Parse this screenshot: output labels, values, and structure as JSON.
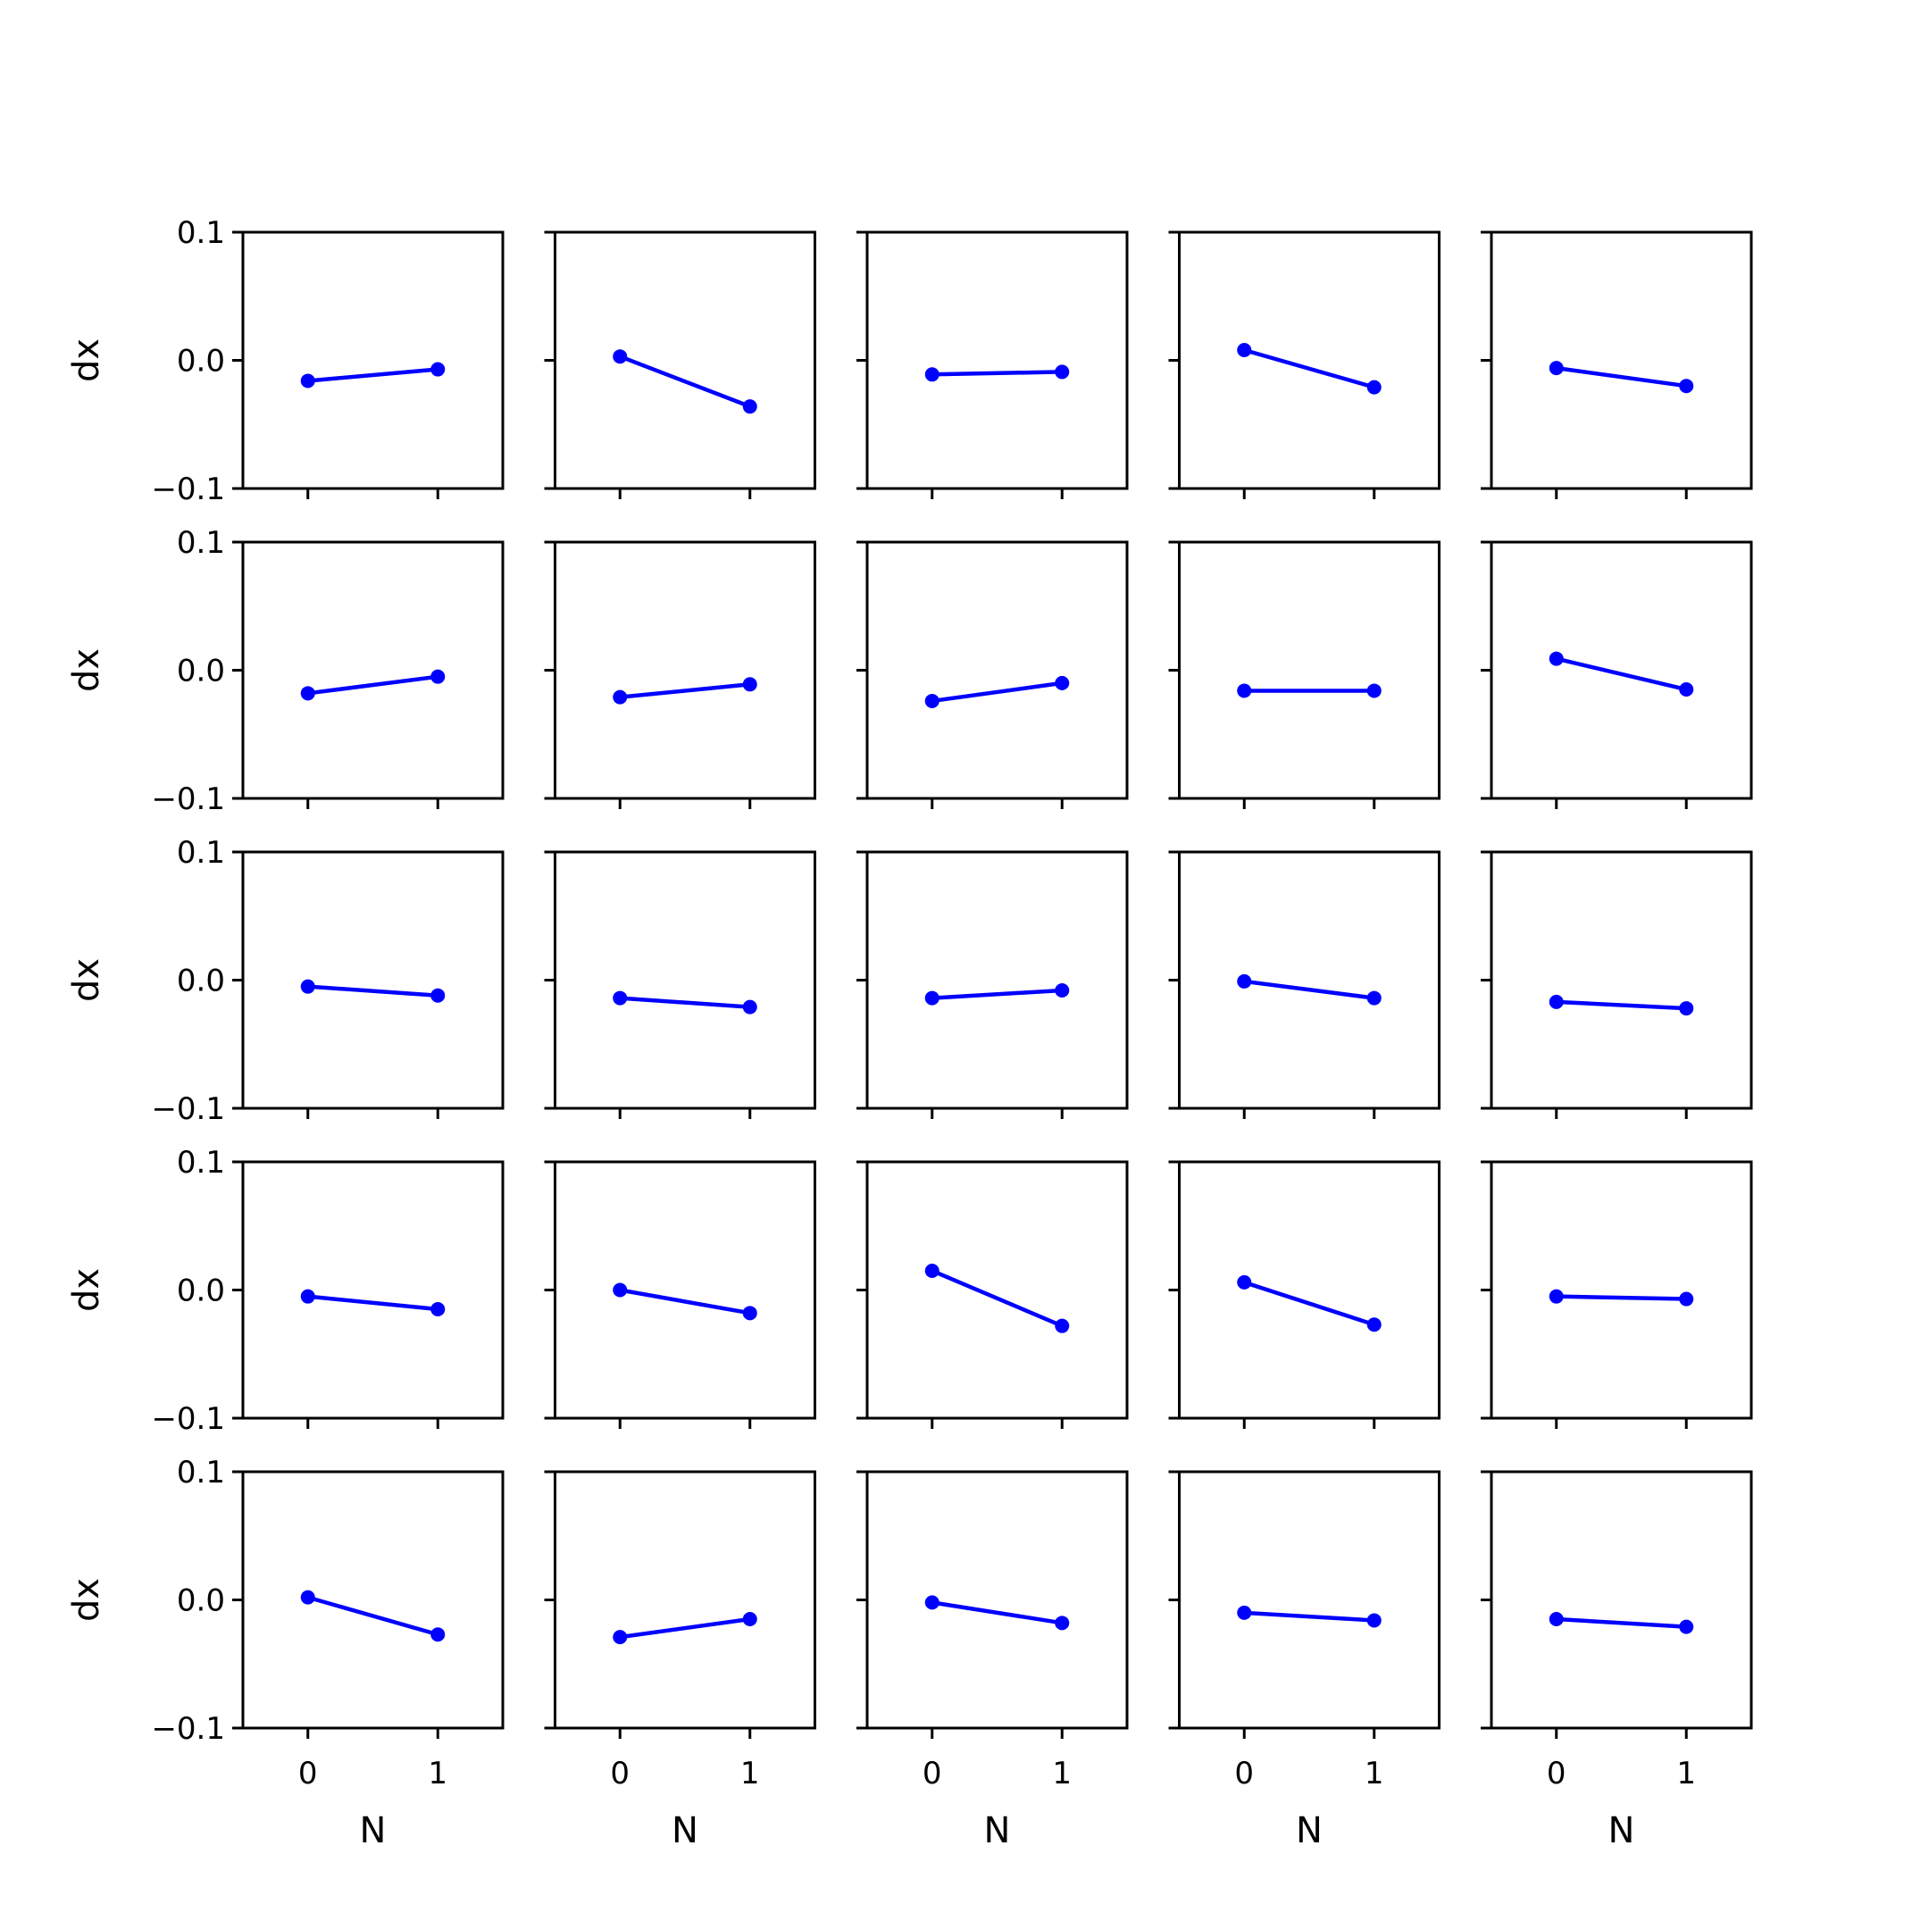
{
  "chart_data": {
    "type": "line",
    "layout": "5x5 grid of subplots, shared x and y axes",
    "x": [
      0,
      1
    ],
    "xticks": [
      0,
      1
    ],
    "xtick_labels": [
      "0",
      "1"
    ],
    "xlim": [
      -0.5,
      1.5
    ],
    "yticks": [
      -0.1,
      0.0,
      0.1
    ],
    "ytick_labels": [
      "−0.1",
      "0.0",
      "0.1"
    ],
    "ylim": [
      -0.1,
      0.1
    ],
    "xlabel": "N",
    "ylabel": "dx",
    "color": "#0000ff",
    "marker": "circle",
    "grid": false,
    "subplots": [
      {
        "values": [
          -0.016,
          -0.007
        ]
      },
      {
        "values": [
          0.003,
          -0.036
        ]
      },
      {
        "values": [
          -0.011,
          -0.009
        ]
      },
      {
        "values": [
          0.008,
          -0.021
        ]
      },
      {
        "values": [
          -0.006,
          -0.02
        ]
      },
      {
        "values": [
          -0.018,
          -0.005
        ]
      },
      {
        "values": [
          -0.021,
          -0.011
        ]
      },
      {
        "values": [
          -0.024,
          -0.01
        ]
      },
      {
        "values": [
          -0.016,
          -0.016
        ]
      },
      {
        "values": [
          0.009,
          -0.015
        ]
      },
      {
        "values": [
          -0.005,
          -0.012
        ]
      },
      {
        "values": [
          -0.014,
          -0.021
        ]
      },
      {
        "values": [
          -0.014,
          -0.008
        ]
      },
      {
        "values": [
          -0.001,
          -0.014
        ]
      },
      {
        "values": [
          -0.017,
          -0.022
        ]
      },
      {
        "values": [
          -0.005,
          -0.015
        ]
      },
      {
        "values": [
          0.0,
          -0.018
        ]
      },
      {
        "values": [
          0.015,
          -0.028
        ]
      },
      {
        "values": [
          0.006,
          -0.027
        ]
      },
      {
        "values": [
          -0.005,
          -0.007
        ]
      },
      {
        "values": [
          0.002,
          -0.027
        ]
      },
      {
        "values": [
          -0.029,
          -0.015
        ]
      },
      {
        "values": [
          -0.002,
          -0.018
        ]
      },
      {
        "values": [
          -0.01,
          -0.016
        ]
      },
      {
        "values": [
          -0.015,
          -0.021
        ]
      }
    ]
  }
}
